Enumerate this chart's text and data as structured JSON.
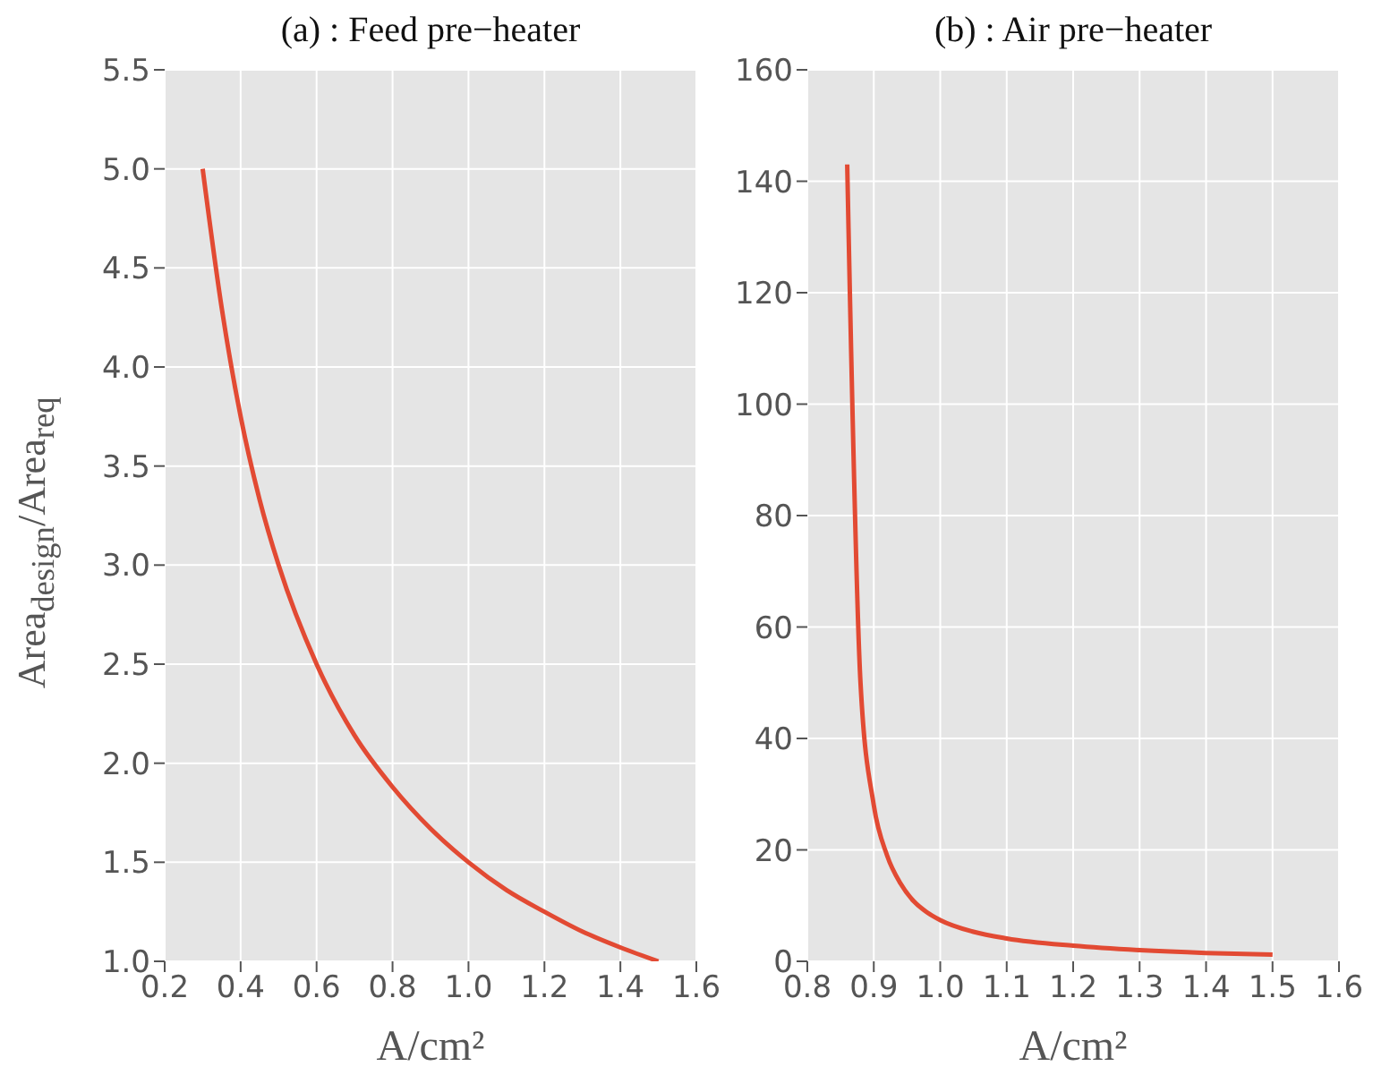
{
  "chart_data": [
    {
      "type": "line",
      "title": "(a) : Feed pre−heater",
      "xlabel": "A/cm²",
      "ylabel": "Area$_{design}$/Area$_{req}$",
      "grid": true,
      "color": "#e24a33",
      "x": [
        0.3,
        0.35,
        0.4,
        0.45,
        0.5,
        0.6,
        0.7,
        0.8,
        0.9,
        1.0,
        1.1,
        1.2,
        1.3,
        1.4,
        1.5
      ],
      "values": [
        5.0,
        4.3,
        3.75,
        3.33,
        3.0,
        2.5,
        2.14,
        1.88,
        1.67,
        1.5,
        1.36,
        1.25,
        1.15,
        1.07,
        1.0
      ],
      "xlim": [
        0.2,
        1.6
      ],
      "xticks": [
        0.2,
        0.4,
        0.6,
        0.8,
        {
          "value": 1,
          "label": "1.0"
        },
        1.2,
        1.4,
        1.6
      ],
      "ylim": [
        1,
        5.5
      ],
      "yticks": [
        {
          "value": 1,
          "label": "1.0"
        },
        1.5,
        {
          "value": 2,
          "label": "2.0"
        },
        2.5,
        {
          "value": 3,
          "label": "3.0"
        },
        3.5,
        {
          "value": 4,
          "label": "4.0"
        },
        4.5,
        {
          "value": 5,
          "label": "5.0"
        },
        5.5
      ]
    },
    {
      "type": "line",
      "title": "(b) : Air pre−heater",
      "xlabel": "A/cm²",
      "grid": true,
      "color": "#e24a33",
      "x": [
        0.86,
        0.88,
        0.9,
        0.92,
        0.94,
        0.96,
        0.98,
        1.0,
        1.05,
        1.1,
        1.2,
        1.3,
        1.4,
        1.5
      ],
      "values": [
        143,
        50,
        28,
        19,
        14,
        10.8,
        8.8,
        7.4,
        5.3,
        4.1,
        2.8,
        2.0,
        1.5,
        1.2
      ],
      "xlim": [
        0.8,
        1.6
      ],
      "xticks": [
        0.8,
        0.9,
        {
          "value": 1,
          "label": "1.0"
        },
        1.1,
        1.2,
        1.3,
        1.4,
        1.5,
        1.6
      ],
      "ylim": [
        0,
        160
      ],
      "yticks": [
        0,
        20,
        40,
        60,
        80,
        100,
        120,
        140,
        160
      ]
    }
  ]
}
